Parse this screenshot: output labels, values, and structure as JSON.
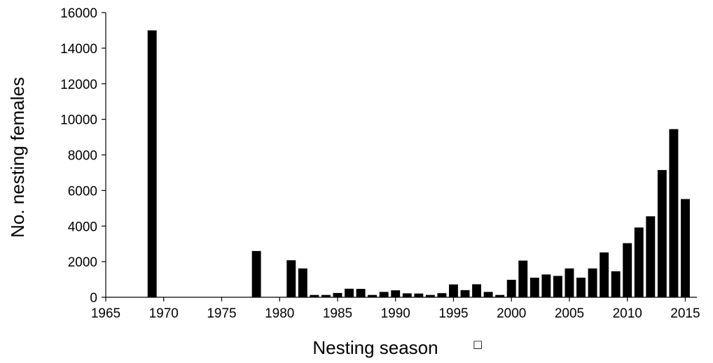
{
  "chart_data": {
    "type": "bar",
    "xlabel": "Nesting season",
    "xlabel_suffix": "□",
    "ylabel": "No. nesting females",
    "xlim": [
      1965,
      2016
    ],
    "ylim": [
      0,
      16000
    ],
    "x_ticks": [
      1965,
      1970,
      1975,
      1980,
      1985,
      1990,
      1995,
      2000,
      2005,
      2010,
      2015
    ],
    "y_ticks": [
      0,
      2000,
      4000,
      6000,
      8000,
      10000,
      12000,
      14000,
      16000
    ],
    "grid": false,
    "legend": "none",
    "bar_color": "#000000",
    "x": [
      1969,
      1978,
      1981,
      1982,
      1983,
      1984,
      1985,
      1986,
      1987,
      1988,
      1989,
      1990,
      1991,
      1992,
      1993,
      1994,
      1995,
      1996,
      1997,
      1998,
      1999,
      2000,
      2001,
      2002,
      2003,
      2004,
      2005,
      2006,
      2007,
      2008,
      2009,
      2010,
      2011,
      2012,
      2013,
      2014,
      2015
    ],
    "values": [
      15000,
      2600,
      2080,
      1620,
      130,
      130,
      240,
      480,
      470,
      130,
      300,
      390,
      220,
      210,
      130,
      230,
      720,
      400,
      730,
      300,
      130,
      980,
      2060,
      1100,
      1280,
      1200,
      1620,
      1100,
      1620,
      2520,
      1460,
      3040,
      3920,
      4550,
      7150,
      9450,
      5520
    ]
  }
}
